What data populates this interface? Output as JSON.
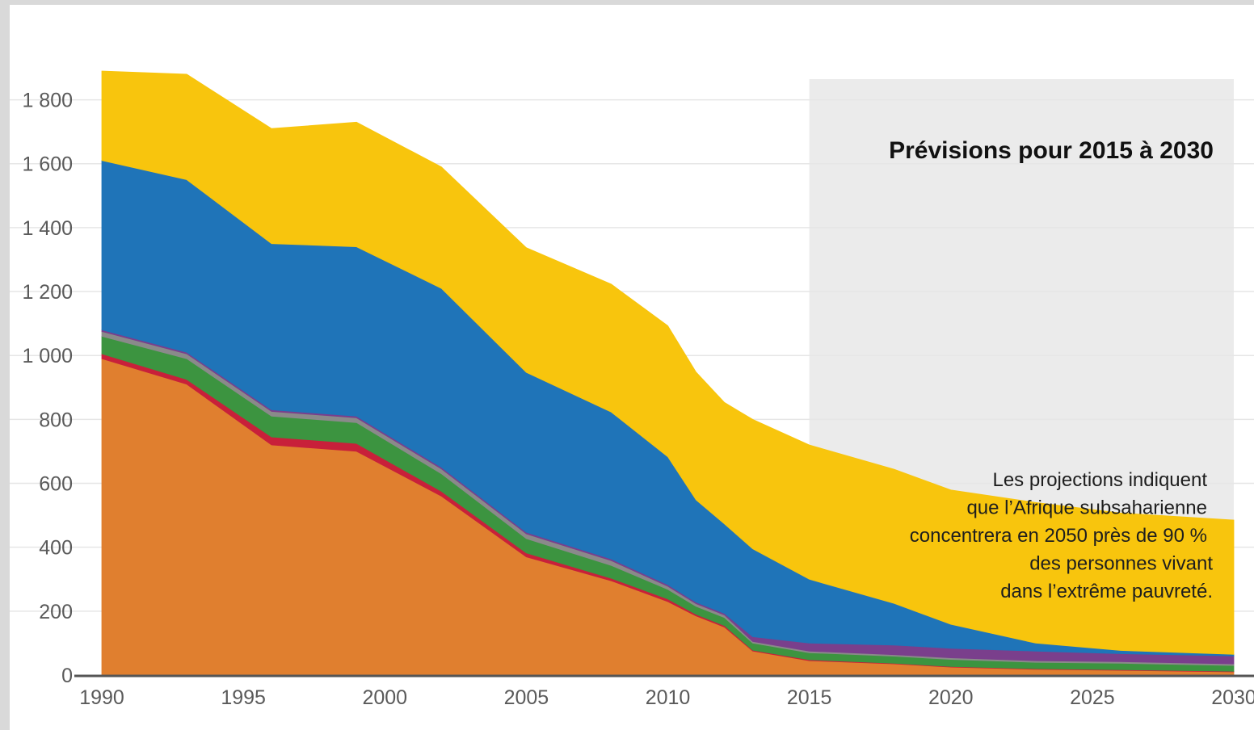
{
  "chart_data": {
    "type": "area",
    "stacked": true,
    "x": [
      1990,
      1993,
      1996,
      1999,
      2002,
      2005,
      2008,
      2010,
      2011,
      2012,
      2013,
      2015,
      2018,
      2020,
      2023,
      2026,
      2030
    ],
    "series": [
      {
        "color": "#e07f2f",
        "values": [
          990,
          910,
          720,
          700,
          560,
          370,
          295,
          230,
          185,
          150,
          75,
          45,
          35,
          25,
          18,
          15,
          10
        ]
      },
      {
        "color": "#c8203a",
        "values": [
          15,
          15,
          25,
          25,
          15,
          12,
          8,
          8,
          5,
          5,
          3,
          3,
          2,
          2,
          2,
          2,
          2
        ]
      },
      {
        "color": "#3c9440",
        "values": [
          55,
          65,
          65,
          65,
          55,
          45,
          40,
          30,
          25,
          25,
          22,
          22,
          22,
          22,
          20,
          20,
          18
        ]
      },
      {
        "color": "#8a8a8a",
        "values": [
          15,
          15,
          15,
          15,
          15,
          15,
          15,
          10,
          8,
          8,
          5,
          5,
          5,
          5,
          5,
          5,
          5
        ]
      },
      {
        "color": "#7a3f8c",
        "values": [
          5,
          5,
          5,
          5,
          5,
          5,
          5,
          5,
          5,
          5,
          15,
          25,
          30,
          30,
          30,
          25,
          25
        ]
      },
      {
        "color": "#1f74b8",
        "values": [
          530,
          540,
          520,
          530,
          560,
          500,
          460,
          400,
          320,
          280,
          275,
          200,
          130,
          75,
          25,
          10,
          5
        ]
      },
      {
        "color": "#f8c50d",
        "values": [
          280,
          330,
          360,
          390,
          380,
          390,
          400,
          410,
          400,
          380,
          405,
          420,
          420,
          420,
          440,
          430,
          420
        ]
      }
    ],
    "xlim": [
      1990,
      2030
    ],
    "ylim": [
      0,
      1900
    ],
    "xticks": [
      "1990",
      "1995",
      "2000",
      "2005",
      "2010",
      "2015",
      "2020",
      "2025",
      "2030"
    ],
    "yticks": [
      "0",
      "200",
      "400",
      "600",
      "800",
      "1 000",
      "1 200",
      "1 400",
      "1 600",
      "1 800"
    ],
    "grid": true,
    "forecast_region": {
      "from": 2015,
      "to": 2030,
      "color": "#ebebeb"
    },
    "annotations": {
      "forecast_title": "Prévisions pour 2015 à 2030",
      "projection_lines": [
        "Les projections indiquent",
        "que l’Afrique subsaharienne",
        "concentrera en 2050 près de 90 %",
        "des personnes vivant",
        "dans l’extrême pauvreté."
      ]
    }
  }
}
